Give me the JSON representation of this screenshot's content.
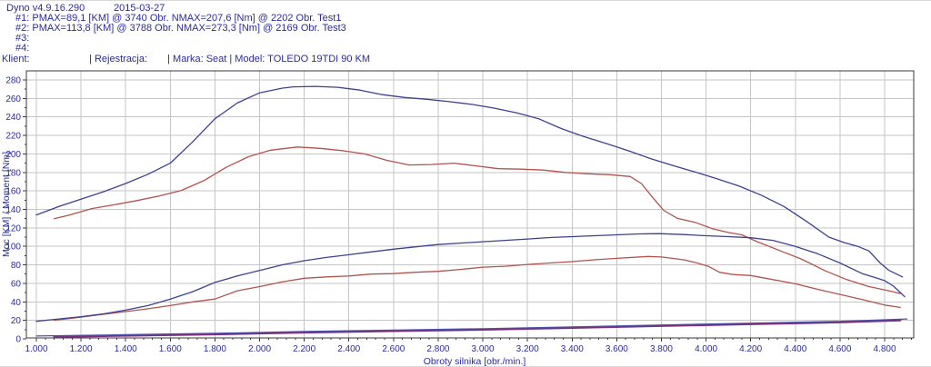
{
  "header": {
    "app_title": "Dyno v4.9.16.290",
    "date": "2015-03-27",
    "runs": [
      {
        "id": "#1:",
        "pmax": "PMAX=89,1 [KM] @ 3740 Obr.",
        "nmax": "NMAX=207,6 [Nm] @ 2202 Obr.",
        "test": "Test1"
      },
      {
        "id": "#2:",
        "pmax": "PMAX=113,8 [KM] @ 3788 Obr.",
        "nmax": "NMAX=273,3 [Nm] @ 2169 Obr.",
        "test": "Test3"
      },
      {
        "id": "#3:",
        "pmax": "",
        "nmax": "",
        "test": ""
      },
      {
        "id": "#4:",
        "pmax": "",
        "nmax": "",
        "test": ""
      }
    ],
    "client_line": {
      "klient": "Klient:",
      "rejestracja": "| Rejestracja:",
      "marka_model": "| Marka: Seat | Model: TOLEDO 19TDI 90 KM"
    }
  },
  "colors": {
    "text_blue": "#2b2b9d",
    "curve_blue": "#3c4190",
    "curve_red": "#b1544d",
    "aux_blue": "#4953a8",
    "aux_magenta": "#7c2d7c",
    "grid": "#c6c6c6",
    "axis": "#3a3a3a"
  },
  "chart_data": {
    "type": "line",
    "title": "",
    "xlabel": "Obroty silnika [obr./min.]",
    "ylabel": "Moc [KM] / Moment [Nm]",
    "xlim": [
      1000,
      4930
    ],
    "ylim": [
      0,
      290
    ],
    "grid": true,
    "legend_position": "none",
    "x_ticks": [
      {
        "value": 1000,
        "label": "1.000"
      },
      {
        "value": 1200,
        "label": "1.200"
      },
      {
        "value": 1400,
        "label": "1.400"
      },
      {
        "value": 1600,
        "label": "1.600"
      },
      {
        "value": 1800,
        "label": "1.800"
      },
      {
        "value": 2000,
        "label": "2.000"
      },
      {
        "value": 2200,
        "label": "2.200"
      },
      {
        "value": 2400,
        "label": "2.400"
      },
      {
        "value": 2600,
        "label": "2.600"
      },
      {
        "value": 2800,
        "label": "2.800"
      },
      {
        "value": 3000,
        "label": "3.000"
      },
      {
        "value": 3200,
        "label": "3.200"
      },
      {
        "value": 3400,
        "label": "3.400"
      },
      {
        "value": 3600,
        "label": "3.600"
      },
      {
        "value": 3800,
        "label": "3.800"
      },
      {
        "value": 4000,
        "label": "4.000"
      },
      {
        "value": 4200,
        "label": "4.200"
      },
      {
        "value": 4400,
        "label": "4.400"
      },
      {
        "value": 4600,
        "label": "4.600"
      },
      {
        "value": 4800,
        "label": "4.800"
      }
    ],
    "y_ticks": [
      0,
      20,
      40,
      60,
      80,
      100,
      120,
      140,
      160,
      180,
      200,
      220,
      240,
      260,
      280
    ],
    "series": [
      {
        "name": "torque-test3-blue",
        "unit": "Nm",
        "color": "#3c4190",
        "width": 1.3,
        "points": [
          [
            1000,
            134
          ],
          [
            1100,
            143
          ],
          [
            1200,
            151
          ],
          [
            1300,
            159
          ],
          [
            1400,
            168
          ],
          [
            1500,
            178
          ],
          [
            1600,
            190
          ],
          [
            1700,
            213
          ],
          [
            1800,
            238
          ],
          [
            1900,
            255
          ],
          [
            2000,
            266
          ],
          [
            2100,
            271
          ],
          [
            2150,
            272.5
          ],
          [
            2250,
            273
          ],
          [
            2350,
            272
          ],
          [
            2450,
            269
          ],
          [
            2550,
            264
          ],
          [
            2650,
            261
          ],
          [
            2750,
            259
          ],
          [
            2850,
            256.5
          ],
          [
            2950,
            253.5
          ],
          [
            3050,
            249.5
          ],
          [
            3150,
            244.5
          ],
          [
            3250,
            238
          ],
          [
            3350,
            227.5
          ],
          [
            3450,
            219
          ],
          [
            3550,
            211.5
          ],
          [
            3650,
            203.5
          ],
          [
            3750,
            195
          ],
          [
            3850,
            187.5
          ],
          [
            3950,
            180.5
          ],
          [
            4050,
            173
          ],
          [
            4150,
            165
          ],
          [
            4250,
            155
          ],
          [
            4350,
            143
          ],
          [
            4450,
            127
          ],
          [
            4550,
            110
          ],
          [
            4620,
            104
          ],
          [
            4680,
            100
          ],
          [
            4730,
            95
          ],
          [
            4780,
            82
          ],
          [
            4820,
            74
          ],
          [
            4880,
            67
          ]
        ]
      },
      {
        "name": "torque-test1-red",
        "unit": "Nm",
        "color": "#b1544d",
        "width": 1.3,
        "points": [
          [
            1080,
            130
          ],
          [
            1150,
            134
          ],
          [
            1250,
            141
          ],
          [
            1350,
            145
          ],
          [
            1450,
            149.5
          ],
          [
            1550,
            154.5
          ],
          [
            1650,
            160.5
          ],
          [
            1750,
            171
          ],
          [
            1850,
            185.5
          ],
          [
            1950,
            197
          ],
          [
            2050,
            204
          ],
          [
            2170,
            207.5
          ],
          [
            2270,
            206
          ],
          [
            2370,
            203.5
          ],
          [
            2470,
            200
          ],
          [
            2570,
            193
          ],
          [
            2670,
            188
          ],
          [
            2770,
            188.5
          ],
          [
            2870,
            190
          ],
          [
            2970,
            187
          ],
          [
            3070,
            184
          ],
          [
            3170,
            183.5
          ],
          [
            3270,
            182.5
          ],
          [
            3370,
            180
          ],
          [
            3470,
            178.5
          ],
          [
            3570,
            177.5
          ],
          [
            3660,
            175.5
          ],
          [
            3710,
            168
          ],
          [
            3760,
            153
          ],
          [
            3810,
            139
          ],
          [
            3870,
            130.5
          ],
          [
            3950,
            126
          ],
          [
            4030,
            119
          ],
          [
            4100,
            115
          ],
          [
            4160,
            112.5
          ],
          [
            4230,
            105
          ],
          [
            4330,
            95.5
          ],
          [
            4430,
            86
          ],
          [
            4530,
            74
          ],
          [
            4630,
            64
          ],
          [
            4730,
            56.5
          ],
          [
            4810,
            52.5
          ],
          [
            4870,
            49
          ]
        ]
      },
      {
        "name": "power-test3-blue",
        "unit": "KM",
        "color": "#3c4190",
        "width": 1.3,
        "points": [
          [
            1000,
            19
          ],
          [
            1100,
            21.5
          ],
          [
            1200,
            24
          ],
          [
            1300,
            27
          ],
          [
            1400,
            31
          ],
          [
            1500,
            36
          ],
          [
            1600,
            43
          ],
          [
            1700,
            51
          ],
          [
            1800,
            61
          ],
          [
            1900,
            68
          ],
          [
            2000,
            74
          ],
          [
            2100,
            80
          ],
          [
            2200,
            84.5
          ],
          [
            2300,
            88
          ],
          [
            2400,
            91
          ],
          [
            2500,
            94
          ],
          [
            2600,
            97
          ],
          [
            2700,
            99.5
          ],
          [
            2800,
            102
          ],
          [
            2900,
            103.5
          ],
          [
            3000,
            105
          ],
          [
            3100,
            106.5
          ],
          [
            3200,
            108
          ],
          [
            3300,
            109.5
          ],
          [
            3400,
            110.5
          ],
          [
            3500,
            111.5
          ],
          [
            3600,
            112.5
          ],
          [
            3700,
            113.5
          ],
          [
            3790,
            113.8
          ],
          [
            3900,
            112.8
          ],
          [
            4000,
            111.5
          ],
          [
            4100,
            110.5
          ],
          [
            4200,
            109.3
          ],
          [
            4300,
            106.5
          ],
          [
            4400,
            100
          ],
          [
            4500,
            92
          ],
          [
            4600,
            82
          ],
          [
            4700,
            70.5
          ],
          [
            4760,
            66
          ],
          [
            4800,
            63
          ],
          [
            4840,
            57
          ],
          [
            4890,
            45.5
          ]
        ]
      },
      {
        "name": "power-test1-red",
        "unit": "KM",
        "color": "#b1544d",
        "width": 1.3,
        "points": [
          [
            1080,
            20
          ],
          [
            1200,
            23.5
          ],
          [
            1300,
            26.5
          ],
          [
            1400,
            29.5
          ],
          [
            1500,
            32.5
          ],
          [
            1600,
            36
          ],
          [
            1700,
            40
          ],
          [
            1800,
            43
          ],
          [
            1900,
            52
          ],
          [
            2000,
            56.5
          ],
          [
            2100,
            61.5
          ],
          [
            2200,
            65.5
          ],
          [
            2300,
            67
          ],
          [
            2400,
            68
          ],
          [
            2500,
            70
          ],
          [
            2600,
            70.5
          ],
          [
            2700,
            72
          ],
          [
            2800,
            73
          ],
          [
            2900,
            75
          ],
          [
            3000,
            77.5
          ],
          [
            3100,
            78.5
          ],
          [
            3200,
            80.5
          ],
          [
            3300,
            82
          ],
          [
            3400,
            83.5
          ],
          [
            3500,
            85.5
          ],
          [
            3600,
            87
          ],
          [
            3740,
            89.1
          ],
          [
            3800,
            88.5
          ],
          [
            3900,
            85.5
          ],
          [
            3960,
            82
          ],
          [
            4010,
            78.5
          ],
          [
            4060,
            72
          ],
          [
            4120,
            69.5
          ],
          [
            4200,
            68.5
          ],
          [
            4300,
            64
          ],
          [
            4400,
            59.5
          ],
          [
            4500,
            53.5
          ],
          [
            4600,
            48
          ],
          [
            4700,
            42.5
          ],
          [
            4800,
            36.5
          ],
          [
            4870,
            34
          ]
        ]
      },
      {
        "name": "aux-magenta",
        "unit": "",
        "color": "#7c2d7c",
        "width": 2.4,
        "points": [
          [
            1080,
            2.2
          ],
          [
            1400,
            3.5
          ],
          [
            1800,
            5
          ],
          [
            2200,
            7
          ],
          [
            2600,
            8.5
          ],
          [
            3000,
            10
          ],
          [
            3400,
            12
          ],
          [
            3800,
            14
          ],
          [
            4200,
            16
          ],
          [
            4600,
            18
          ],
          [
            4870,
            20
          ]
        ]
      },
      {
        "name": "aux-blue",
        "unit": "",
        "color": "#4953a8",
        "width": 1.2,
        "points": [
          [
            1000,
            3
          ],
          [
            1400,
            4.5
          ],
          [
            1800,
            6
          ],
          [
            2200,
            8
          ],
          [
            2600,
            9.5
          ],
          [
            3000,
            11
          ],
          [
            3400,
            13
          ],
          [
            3800,
            15
          ],
          [
            4200,
            17
          ],
          [
            4600,
            19
          ],
          [
            4900,
            21.5
          ]
        ]
      }
    ]
  }
}
